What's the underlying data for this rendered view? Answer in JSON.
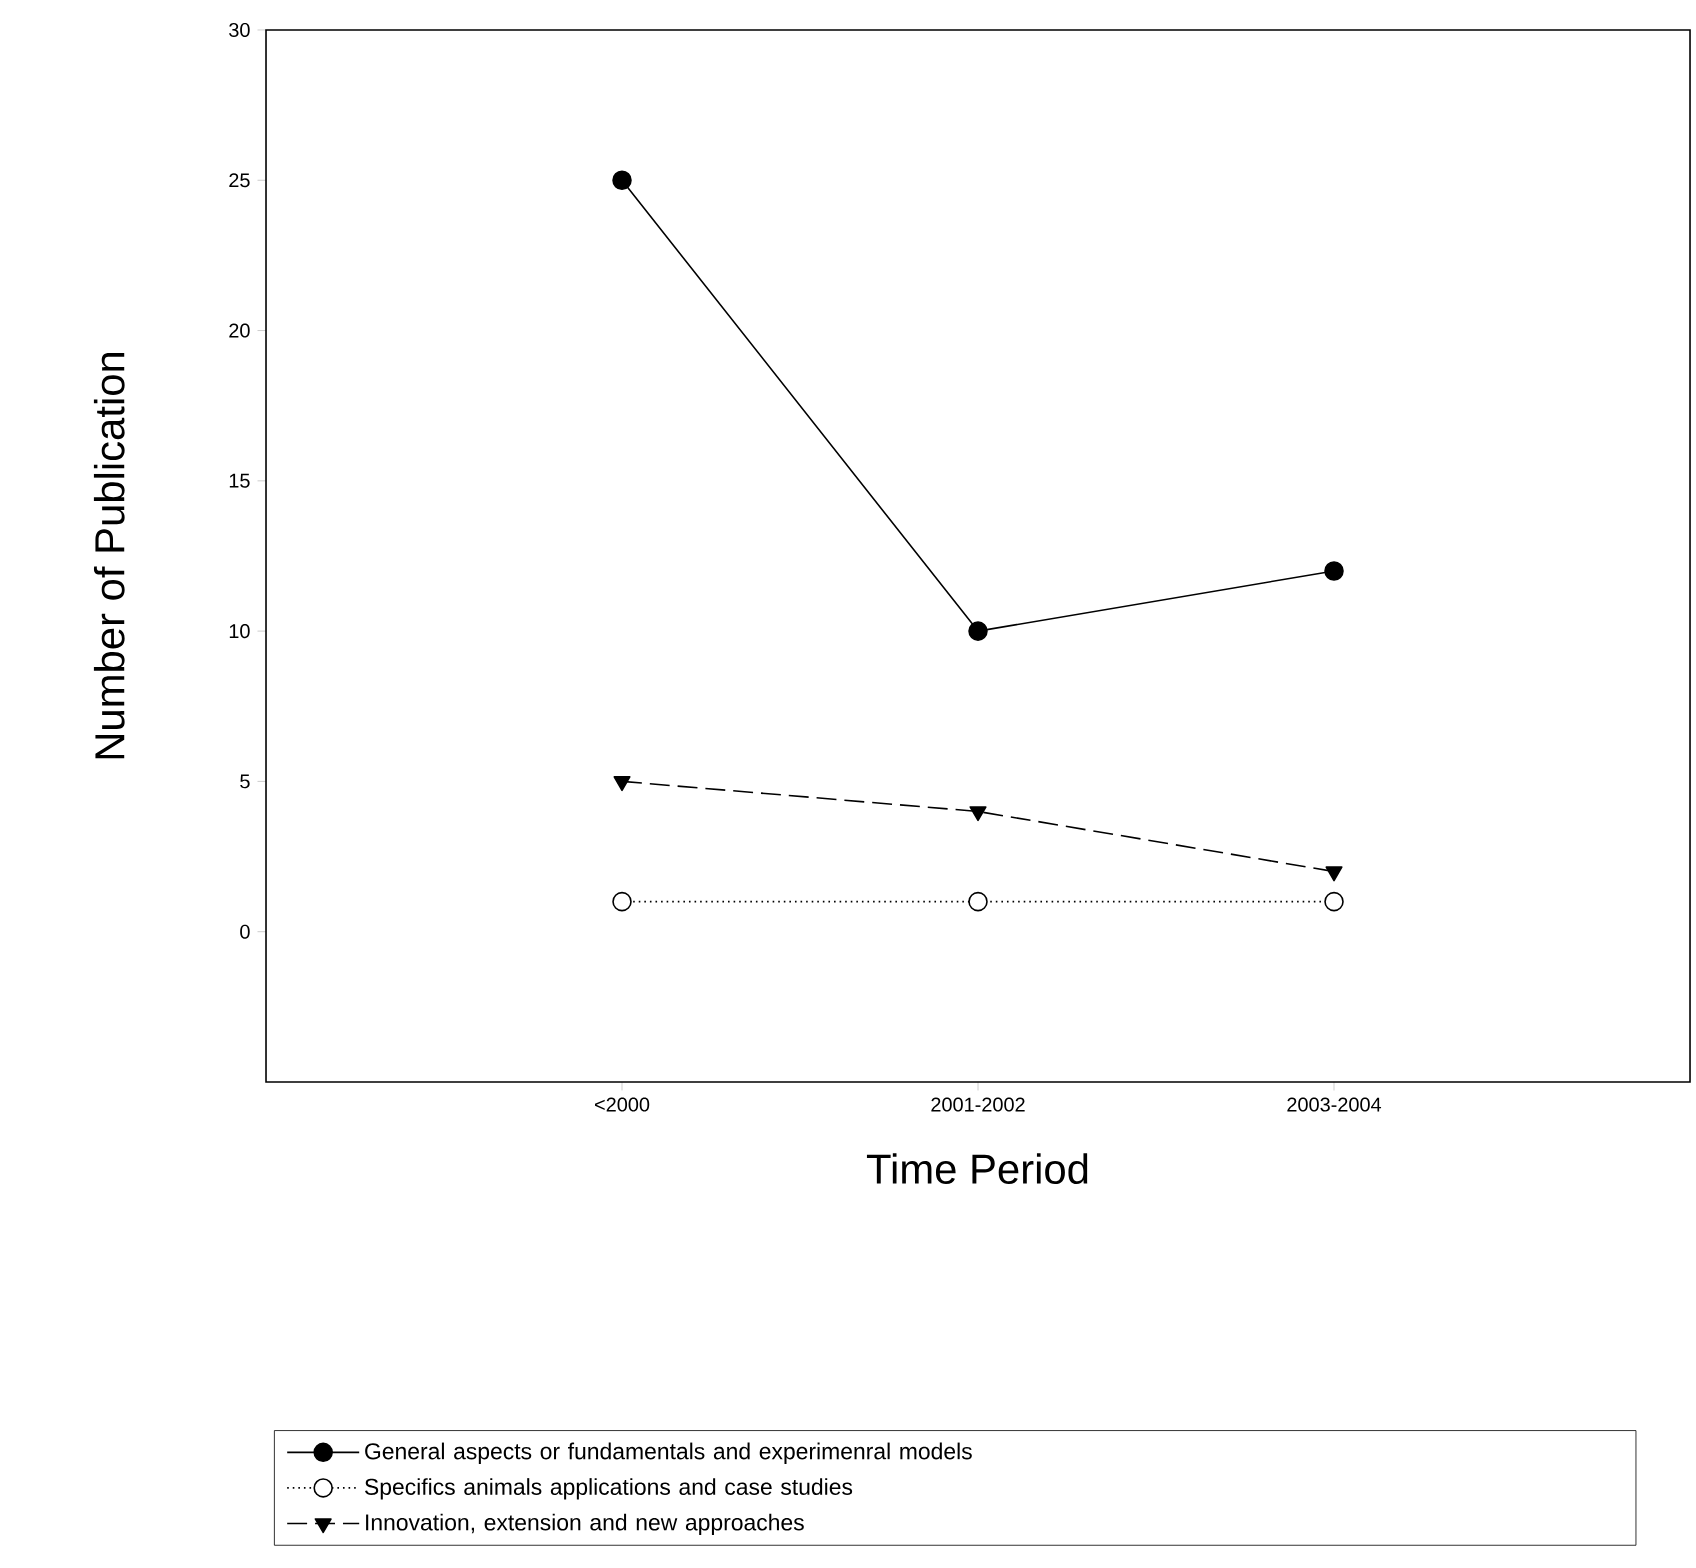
{
  "chart_data": {
    "type": "line",
    "xlabel": "Time Period",
    "ylabel": "Number of Publication",
    "categories": [
      "<2000",
      "2001-2002",
      "2003-2004"
    ],
    "series": [
      {
        "name": "General aspects or fundamentals and experimenral models",
        "color": "#000000",
        "values": [
          25,
          10,
          12
        ],
        "marker": "circle",
        "line_style": "solid"
      },
      {
        "name": "Specifics animals applications and case studies",
        "color": "#000000",
        "values": [
          1,
          1,
          1
        ],
        "marker": "circle",
        "line_style": "dotted"
      },
      {
        "name": "Innovation, extension and new approaches",
        "color": "#000000",
        "values": [
          5,
          4,
          2
        ],
        "marker": "triangle",
        "line_style": "dashed"
      }
    ],
    "ylim": [
      -5,
      30
    ],
    "yticks": [
      0,
      5,
      10,
      15,
      20,
      25,
      30
    ],
    "grid": false,
    "legend": "bottom"
  }
}
